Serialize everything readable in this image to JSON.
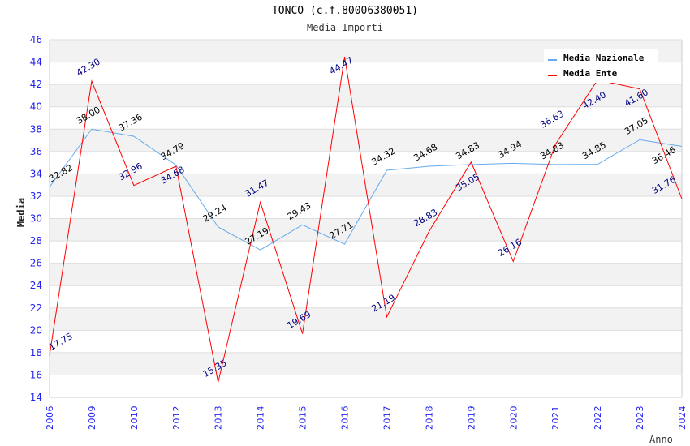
{
  "chart_data": {
    "type": "line",
    "title": "TONCO (c.f.80006380051)",
    "subtitle": "Media Importi",
    "xlabel": "Anno",
    "ylabel": "Media",
    "ylim": [
      14,
      46
    ],
    "yticks": [
      14,
      16,
      18,
      20,
      22,
      24,
      26,
      28,
      30,
      32,
      34,
      36,
      38,
      40,
      42,
      44,
      46
    ],
    "categories": [
      "2006",
      "2009",
      "2010",
      "2012",
      "2013",
      "2014",
      "2015",
      "2016",
      "2017",
      "2018",
      "2019",
      "2020",
      "2021",
      "2022",
      "2023",
      "2024"
    ],
    "legend_position": "top-right",
    "grid": true,
    "series": [
      {
        "name": "Media Nazionale",
        "color": "#66aaee",
        "label_color": "#000000",
        "values": [
          32.82,
          38.0,
          37.36,
          34.79,
          29.24,
          27.19,
          29.43,
          27.71,
          34.32,
          34.68,
          34.83,
          34.94,
          34.83,
          34.85,
          37.05,
          36.46
        ]
      },
      {
        "name": "Media Ente",
        "color": "#ff0000",
        "label_color": "#000080",
        "values": [
          17.75,
          42.3,
          32.96,
          34.68,
          15.35,
          31.47,
          19.69,
          44.47,
          21.19,
          28.83,
          35.05,
          26.16,
          36.63,
          42.4,
          41.6,
          31.76
        ]
      }
    ]
  }
}
